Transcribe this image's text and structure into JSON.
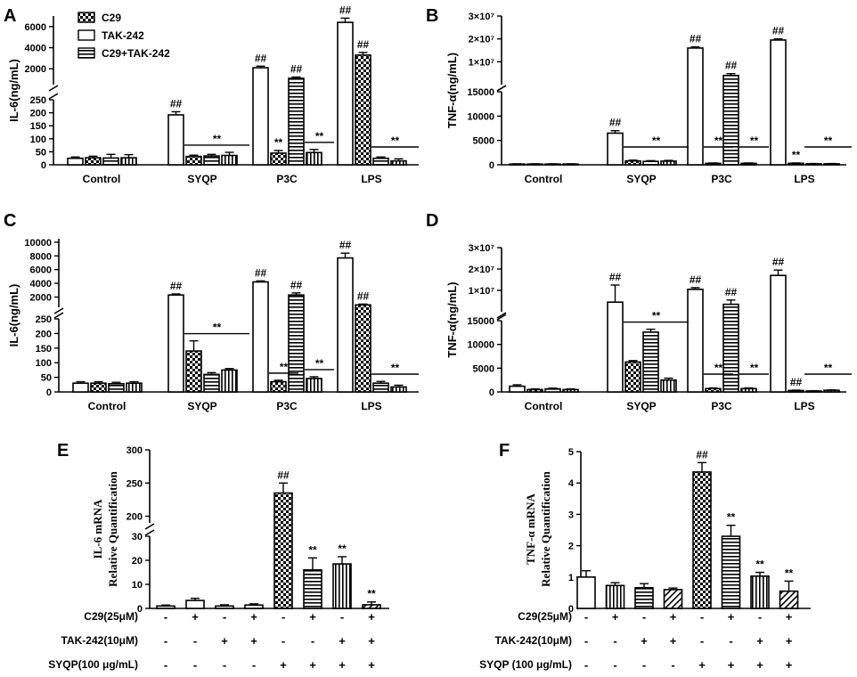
{
  "colors": {
    "ink": "#000000",
    "paper": "#ffffff"
  },
  "legend": {
    "items": [
      "C29",
      "TAK-242",
      "C29+TAK-242"
    ]
  },
  "chart_data": [
    {
      "panel": "A",
      "type": "bar",
      "ylabel": "IL-6(ng/mL)",
      "categories": [
        "Control",
        "SYQP",
        "P3C",
        "LPS"
      ],
      "segments": [
        {
          "ticks": [
            0,
            50,
            100,
            150,
            200,
            250
          ],
          "range": [
            0,
            250
          ]
        },
        {
          "ticks": [
            2000,
            4000,
            6000
          ],
          "range": [
            500,
            7000
          ]
        }
      ],
      "series": [
        {
          "name": "None",
          "values": [
            25,
            192,
            2100,
            6400
          ],
          "errors": [
            5,
            12,
            150,
            400
          ]
        },
        {
          "name": "C29",
          "values": [
            27,
            32,
            45,
            3300
          ],
          "errors": [
            6,
            5,
            10,
            250
          ]
        },
        {
          "name": "TAK-242",
          "values": [
            26,
            34,
            1100,
            25
          ],
          "errors": [
            14,
            6,
            120,
            5
          ]
        },
        {
          "name": "C29+TAK-242",
          "values": [
            27,
            36,
            47,
            15
          ],
          "errors": [
            12,
            12,
            12,
            8
          ]
        }
      ],
      "annotations": [
        {
          "text": "##",
          "group": 1,
          "bar": 0
        },
        {
          "text": "##",
          "group": 2,
          "bar": 0
        },
        {
          "text": "##",
          "group": 2,
          "bar": 2
        },
        {
          "text": "##",
          "group": 3,
          "bar": 0
        },
        {
          "text": "##",
          "group": 3,
          "bar": 1
        },
        {
          "text": "**",
          "group": 2,
          "bar": 1
        }
      ],
      "brackets": [
        {
          "text": "**",
          "group": 1,
          "from": 1,
          "to": 3
        },
        {
          "text": "**",
          "group": 2,
          "from": 3,
          "to": 3
        },
        {
          "text": "**",
          "group": 3,
          "from": 2,
          "to": 3
        }
      ]
    },
    {
      "panel": "B",
      "type": "bar",
      "ylabel": "TNF-α(ng/mL)",
      "categories": [
        "Control",
        "SYQP",
        "P3C",
        "LPS"
      ],
      "segments": [
        {
          "ticks": [
            0,
            5000,
            10000,
            15000
          ],
          "range": [
            0,
            15000
          ]
        },
        {
          "ticks": [
            10000000,
            20000000,
            30000000
          ],
          "tick_labels": [
            "1×10⁷",
            "2×10⁷",
            "3×10⁷"
          ],
          "range": [
            0,
            30000000
          ]
        }
      ],
      "series": [
        {
          "name": "None",
          "values": [
            150,
            6500,
            16000000,
            19500000
          ],
          "errors": [
            50,
            500,
            500000,
            500000
          ]
        },
        {
          "name": "C29",
          "values": [
            150,
            800,
            300,
            300
          ],
          "errors": [
            50,
            150,
            80,
            80
          ]
        },
        {
          "name": "TAK-242",
          "values": [
            150,
            700,
            4000000,
            200
          ],
          "errors": [
            50,
            150,
            800000,
            60
          ]
        },
        {
          "name": "C29+TAK-242",
          "values": [
            150,
            750,
            300,
            200
          ],
          "errors": [
            50,
            150,
            80,
            60
          ]
        }
      ],
      "annotations": [
        {
          "text": "##",
          "group": 1,
          "bar": 0
        },
        {
          "text": "##",
          "group": 2,
          "bar": 0
        },
        {
          "text": "##",
          "group": 2,
          "bar": 2
        },
        {
          "text": "##",
          "group": 3,
          "bar": 0
        },
        {
          "text": "**",
          "group": 3,
          "bar": 1
        }
      ],
      "brackets": [
        {
          "text": "**",
          "group": 1,
          "from": 1,
          "to": 3
        },
        {
          "text": "**",
          "group": 2,
          "from": 1,
          "to": 1
        },
        {
          "text": "**",
          "group": 2,
          "from": 3,
          "to": 3
        },
        {
          "text": "**",
          "group": 3,
          "from": 2,
          "to": 3
        }
      ]
    },
    {
      "panel": "C",
      "type": "bar",
      "ylabel": "IL-6(ng/mL)",
      "categories": [
        "Control",
        "SYQP",
        "P3C",
        "LPS"
      ],
      "segments": [
        {
          "ticks": [
            0,
            50,
            100,
            150,
            200,
            250
          ],
          "range": [
            0,
            250
          ]
        },
        {
          "ticks": [
            2000,
            4000,
            6000,
            8000,
            10000
          ],
          "range": [
            500,
            10500
          ]
        }
      ],
      "series": [
        {
          "name": "None",
          "values": [
            30,
            2300,
            4200,
            7700
          ],
          "errors": [
            5,
            150,
            150,
            700
          ]
        },
        {
          "name": "C29",
          "values": [
            30,
            140,
            35,
            850
          ],
          "errors": [
            5,
            35,
            5,
            120
          ]
        },
        {
          "name": "TAK-242",
          "values": [
            28,
            60,
            2300,
            30
          ],
          "errors": [
            5,
            6,
            300,
            6
          ]
        },
        {
          "name": "C29+TAK-242",
          "values": [
            30,
            75,
            46,
            17
          ],
          "errors": [
            5,
            5,
            6,
            6
          ]
        }
      ],
      "annotations": [
        {
          "text": "##",
          "group": 1,
          "bar": 0
        },
        {
          "text": "##",
          "group": 2,
          "bar": 0
        },
        {
          "text": "##",
          "group": 2,
          "bar": 2
        },
        {
          "text": "##",
          "group": 3,
          "bar": 0
        },
        {
          "text": "##",
          "group": 3,
          "bar": 1
        }
      ],
      "brackets": [
        {
          "text": "**",
          "group": 1,
          "from": 1,
          "to": 3
        },
        {
          "text": "**",
          "group": 2,
          "from": 1,
          "to": 1
        },
        {
          "text": "**",
          "group": 2,
          "from": 3,
          "to": 3
        },
        {
          "text": "**",
          "group": 3,
          "from": 2,
          "to": 3
        }
      ]
    },
    {
      "panel": "D",
      "type": "bar",
      "ylabel": "TNF-α(ng/mL)",
      "categories": [
        "Control",
        "SYQP",
        "P3C",
        "LPS"
      ],
      "segments": [
        {
          "ticks": [
            0,
            5000,
            10000,
            15000
          ],
          "range": [
            0,
            15000
          ]
        },
        {
          "ticks": [
            10000000,
            20000000,
            30000000
          ],
          "tick_labels": [
            "1×10⁷",
            "2×10⁷",
            "3×10⁷"
          ],
          "range": [
            0,
            30000000
          ]
        }
      ],
      "series": [
        {
          "name": "None",
          "values": [
            1200,
            4500000,
            10500000,
            17000000
          ],
          "errors": [
            300,
            8000000,
            800000,
            2500000
          ]
        },
        {
          "name": "C29",
          "values": [
            500,
            6300,
            700,
            300
          ],
          "errors": [
            150,
            300,
            150,
            80
          ]
        },
        {
          "name": "TAK-242",
          "values": [
            650,
            12600,
            3500000,
            200
          ],
          "errors": [
            150,
            600,
            2000000,
            60
          ]
        },
        {
          "name": "C29+TAK-242",
          "values": [
            500,
            2500,
            700,
            350
          ],
          "errors": [
            150,
            400,
            150,
            80
          ]
        }
      ],
      "annotations": [
        {
          "text": "##",
          "group": 1,
          "bar": 0
        },
        {
          "text": "##",
          "group": 2,
          "bar": 0
        },
        {
          "text": "##",
          "group": 2,
          "bar": 2
        },
        {
          "text": "##",
          "group": 3,
          "bar": 0
        },
        {
          "text": "##",
          "group": 3,
          "bar": 1
        }
      ],
      "brackets": [
        {
          "text": "**",
          "group": 1,
          "from": 1,
          "to": 3
        },
        {
          "text": "**",
          "group": 2,
          "from": 1,
          "to": 1
        },
        {
          "text": "**",
          "group": 2,
          "from": 3,
          "to": 3
        },
        {
          "text": "**",
          "group": 3,
          "from": 2,
          "to": 3
        }
      ]
    },
    {
      "panel": "E",
      "type": "bar",
      "ylabel": [
        "IL-6 mRNA",
        "Relative Quantification"
      ],
      "segments": [
        {
          "ticks": [
            0,
            10,
            20,
            30
          ],
          "range": [
            0,
            30
          ]
        },
        {
          "ticks": [
            200,
            250,
            300
          ],
          "range": [
            190,
            300
          ]
        }
      ],
      "bars": [
        {
          "value": 1,
          "error": 0.4,
          "pattern": "none",
          "mark": ""
        },
        {
          "value": 3.3,
          "error": 0.9,
          "pattern": "none",
          "mark": ""
        },
        {
          "value": 1,
          "error": 0.5,
          "pattern": "none",
          "mark": ""
        },
        {
          "value": 1.4,
          "error": 0.5,
          "pattern": "none",
          "mark": ""
        },
        {
          "value": 235,
          "error": 15,
          "pattern": "checker",
          "mark": "##"
        },
        {
          "value": 16,
          "error": 5,
          "pattern": "hlines",
          "mark": "**"
        },
        {
          "value": 18.5,
          "error": 3,
          "pattern": "vlines",
          "mark": "**"
        },
        {
          "value": 1.5,
          "error": 1.2,
          "pattern": "diag",
          "mark": "**"
        }
      ],
      "rows": [
        {
          "label": "C29(25μM)",
          "signs": [
            "-",
            "+",
            "-",
            "+",
            "-",
            "+",
            "-",
            "+"
          ]
        },
        {
          "label": "TAK-242(10μM)",
          "signs": [
            "-",
            "-",
            "+",
            "+",
            "-",
            "-",
            "+",
            "+"
          ]
        },
        {
          "label": "SYQP(100 μg/mL)",
          "signs": [
            "-",
            "-",
            "-",
            "-",
            "+",
            "+",
            "+",
            "+"
          ]
        }
      ]
    },
    {
      "panel": "F",
      "type": "bar",
      "ylabel": [
        "TNF-α mRNA",
        "Relative Quantification"
      ],
      "ticks": [
        0,
        1,
        2,
        3,
        4,
        5
      ],
      "range": [
        0,
        5
      ],
      "bars": [
        {
          "value": 1.0,
          "error": 0.2,
          "pattern": "none",
          "mark": ""
        },
        {
          "value": 0.73,
          "error": 0.09,
          "pattern": "vlines",
          "mark": ""
        },
        {
          "value": 0.66,
          "error": 0.13,
          "pattern": "hlines",
          "mark": ""
        },
        {
          "value": 0.6,
          "error": 0.05,
          "pattern": "diag",
          "mark": ""
        },
        {
          "value": 4.35,
          "error": 0.3,
          "pattern": "checker",
          "mark": "##"
        },
        {
          "value": 2.3,
          "error": 0.35,
          "pattern": "hlines",
          "mark": "**"
        },
        {
          "value": 1.03,
          "error": 0.12,
          "pattern": "vlines",
          "mark": "**"
        },
        {
          "value": 0.55,
          "error": 0.32,
          "pattern": "diag",
          "mark": "**"
        }
      ],
      "rows": [
        {
          "label": "C29(25μM)",
          "signs": [
            "-",
            "+",
            "-",
            "+",
            "-",
            "+",
            "-",
            "+"
          ]
        },
        {
          "label": "TAK-242(10μM)",
          "signs": [
            "-",
            "-",
            "+",
            "+",
            "-",
            "-",
            "+",
            "+"
          ]
        },
        {
          "label": "SYQP (100 μg/mL)",
          "signs": [
            "-",
            "-",
            "-",
            "-",
            "+",
            "+",
            "+",
            "+"
          ]
        }
      ]
    }
  ]
}
